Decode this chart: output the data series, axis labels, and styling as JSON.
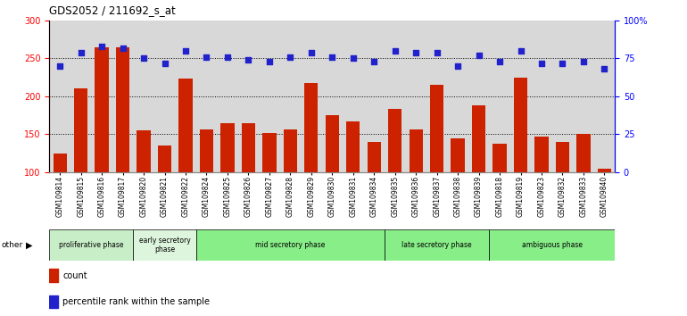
{
  "title": "GDS2052 / 211692_s_at",
  "samples": [
    "GSM109814",
    "GSM109815",
    "GSM109816",
    "GSM109817",
    "GSM109820",
    "GSM109821",
    "GSM109822",
    "GSM109824",
    "GSM109825",
    "GSM109826",
    "GSM109827",
    "GSM109828",
    "GSM109829",
    "GSM109830",
    "GSM109831",
    "GSM109834",
    "GSM109835",
    "GSM109836",
    "GSM109837",
    "GSM109838",
    "GSM109839",
    "GSM109818",
    "GSM109819",
    "GSM109823",
    "GSM109832",
    "GSM109833",
    "GSM109840"
  ],
  "counts": [
    125,
    210,
    265,
    265,
    155,
    135,
    224,
    157,
    165,
    165,
    152,
    156,
    218,
    175,
    167,
    140,
    184,
    157,
    215,
    145,
    188,
    138,
    225,
    147,
    140,
    151,
    105
  ],
  "percentiles": [
    70,
    79,
    83,
    82,
    75,
    72,
    80,
    76,
    76,
    74,
    73,
    76,
    79,
    76,
    75,
    73,
    80,
    79,
    79,
    70,
    77,
    73,
    80,
    72,
    72,
    73,
    68
  ],
  "phases": [
    {
      "label": "proliferative phase",
      "start": 0,
      "end": 4,
      "color": "#c8eec8"
    },
    {
      "label": "early secretory\nphase",
      "start": 4,
      "end": 7,
      "color": "#ddf5dd"
    },
    {
      "label": "mid secretory phase",
      "start": 7,
      "end": 16,
      "color": "#88ee88"
    },
    {
      "label": "late secretory phase",
      "start": 16,
      "end": 21,
      "color": "#88ee88"
    },
    {
      "label": "ambiguous phase",
      "start": 21,
      "end": 27,
      "color": "#88ee88"
    }
  ],
  "ylim_left": [
    100,
    300
  ],
  "ylim_right": [
    0,
    100
  ],
  "bar_color": "#cc2200",
  "scatter_color": "#2222cc",
  "bg_color": "#d8d8d8",
  "yticks_left": [
    100,
    150,
    200,
    250,
    300
  ],
  "yticks_right": [
    0,
    25,
    50,
    75,
    100
  ],
  "ytick_labels_right": [
    "0",
    "25",
    "50",
    "75",
    "100%"
  ]
}
